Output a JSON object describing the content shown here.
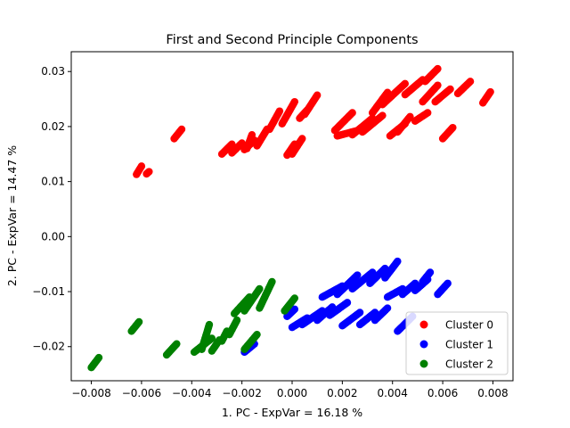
{
  "chart_data": {
    "type": "scatter",
    "title": "First and Second Principle Components",
    "xlabel": "1. PC - ExpVar = 16.18 %",
    "ylabel": "2. PC - ExpVar = 14.47 %",
    "xlim": [
      -0.0088,
      0.0088
    ],
    "ylim": [
      -0.0262,
      0.0336
    ],
    "x_ticks": [
      -0.008,
      -0.006,
      -0.004,
      -0.002,
      0.0,
      0.002,
      0.004,
      0.006,
      0.008
    ],
    "x_tick_labels": [
      "−0.008",
      "−0.006",
      "−0.004",
      "−0.002",
      "0.000",
      "0.002",
      "0.004",
      "0.006",
      "0.008"
    ],
    "y_ticks": [
      -0.02,
      -0.01,
      0.0,
      0.01,
      0.02,
      0.03
    ],
    "y_tick_labels": [
      "−0.02",
      "−0.01",
      "0.00",
      "0.01",
      "0.02",
      "0.03"
    ],
    "grid": false,
    "legend_position": "lower-right",
    "series": [
      {
        "name": "Cluster 0",
        "color": "#ff0000",
        "clusters": [
          {
            "x0": -0.0062,
            "y0": 0.0113,
            "x1": -0.006,
            "y1": 0.0128
          },
          {
            "x0": -0.0047,
            "y0": 0.0178,
            "x1": -0.0044,
            "y1": 0.0195
          },
          {
            "x0": -0.0058,
            "y0": 0.0114,
            "x1": -0.0057,
            "y1": 0.0118
          },
          {
            "x0": -0.0028,
            "y0": 0.015,
            "x1": -0.0024,
            "y1": 0.0168
          },
          {
            "x0": -0.0024,
            "y0": 0.0152,
            "x1": -0.002,
            "y1": 0.017
          },
          {
            "x0": -0.0019,
            "y0": 0.0158,
            "x1": -0.0015,
            "y1": 0.0175
          },
          {
            "x0": -0.0014,
            "y0": 0.0165,
            "x1": -0.001,
            "y1": 0.0195
          },
          {
            "x0": -0.0018,
            "y0": 0.016,
            "x1": -0.0016,
            "y1": 0.0185
          },
          {
            "x0": -0.0009,
            "y0": 0.0195,
            "x1": -0.0005,
            "y1": 0.0228
          },
          {
            "x0": -0.0004,
            "y0": 0.0205,
            "x1": 0.0001,
            "y1": 0.0245
          },
          {
            "x0": -0.0002,
            "y0": 0.0148,
            "x1": 0.0001,
            "y1": 0.0168
          },
          {
            "x0": 0.0,
            "y0": 0.015,
            "x1": 0.0004,
            "y1": 0.0178
          },
          {
            "x0": 0.0005,
            "y0": 0.0222,
            "x1": 0.001,
            "y1": 0.0257
          },
          {
            "x0": 0.0003,
            "y0": 0.0215,
            "x1": 0.0006,
            "y1": 0.023
          },
          {
            "x0": 0.0017,
            "y0": 0.0193,
            "x1": 0.0024,
            "y1": 0.0225
          },
          {
            "x0": 0.0018,
            "y0": 0.0183,
            "x1": 0.0028,
            "y1": 0.0195
          },
          {
            "x0": 0.0024,
            "y0": 0.0185,
            "x1": 0.0032,
            "y1": 0.0215
          },
          {
            "x0": 0.0028,
            "y0": 0.019,
            "x1": 0.0036,
            "y1": 0.022
          },
          {
            "x0": 0.0032,
            "y0": 0.0225,
            "x1": 0.0038,
            "y1": 0.0262
          },
          {
            "x0": 0.0036,
            "y0": 0.024,
            "x1": 0.0045,
            "y1": 0.0278
          },
          {
            "x0": 0.0039,
            "y0": 0.0183,
            "x1": 0.0045,
            "y1": 0.0205
          },
          {
            "x0": 0.0042,
            "y0": 0.019,
            "x1": 0.0047,
            "y1": 0.0218
          },
          {
            "x0": 0.0045,
            "y0": 0.0258,
            "x1": 0.0052,
            "y1": 0.0285
          },
          {
            "x0": 0.0049,
            "y0": 0.021,
            "x1": 0.0054,
            "y1": 0.0225
          },
          {
            "x0": 0.0052,
            "y0": 0.0245,
            "x1": 0.0058,
            "y1": 0.0275
          },
          {
            "x0": 0.0053,
            "y0": 0.0282,
            "x1": 0.0058,
            "y1": 0.0305
          },
          {
            "x0": 0.0057,
            "y0": 0.0245,
            "x1": 0.0063,
            "y1": 0.0268
          },
          {
            "x0": 0.006,
            "y0": 0.0178,
            "x1": 0.0064,
            "y1": 0.0198
          },
          {
            "x0": 0.0066,
            "y0": 0.026,
            "x1": 0.0071,
            "y1": 0.0282
          },
          {
            "x0": 0.0076,
            "y0": 0.0243,
            "x1": 0.0079,
            "y1": 0.0263
          }
        ]
      },
      {
        "name": "Cluster 1",
        "color": "#0000ff",
        "clusters": [
          {
            "x0": -0.0019,
            "y0": -0.021,
            "x1": -0.0015,
            "y1": -0.0195
          },
          {
            "x0": -0.0002,
            "y0": -0.0145,
            "x1": 0.0001,
            "y1": -0.0132
          },
          {
            "x0": 0.0,
            "y0": -0.0165,
            "x1": 0.0006,
            "y1": -0.0148
          },
          {
            "x0": 0.0004,
            "y0": -0.016,
            "x1": 0.0012,
            "y1": -0.0135
          },
          {
            "x0": 0.001,
            "y0": -0.0152,
            "x1": 0.0016,
            "y1": -0.0128
          },
          {
            "x0": 0.0015,
            "y0": -0.0143,
            "x1": 0.0022,
            "y1": -0.012
          },
          {
            "x0": 0.0012,
            "y0": -0.011,
            "x1": 0.002,
            "y1": -0.009
          },
          {
            "x0": 0.0018,
            "y0": -0.0105,
            "x1": 0.0026,
            "y1": -0.007
          },
          {
            "x0": 0.0024,
            "y0": -0.0095,
            "x1": 0.0032,
            "y1": -0.0065
          },
          {
            "x0": 0.0031,
            "y0": -0.0085,
            "x1": 0.0037,
            "y1": -0.0058
          },
          {
            "x0": 0.0037,
            "y0": -0.0075,
            "x1": 0.0042,
            "y1": -0.0045
          },
          {
            "x0": 0.002,
            "y0": -0.0162,
            "x1": 0.0027,
            "y1": -0.0138
          },
          {
            "x0": 0.0027,
            "y0": -0.016,
            "x1": 0.0033,
            "y1": -0.0138
          },
          {
            "x0": 0.0033,
            "y0": -0.0152,
            "x1": 0.0038,
            "y1": -0.013
          },
          {
            "x0": 0.0038,
            "y0": -0.011,
            "x1": 0.0044,
            "y1": -0.0095
          },
          {
            "x0": 0.0044,
            "y0": -0.0105,
            "x1": 0.0049,
            "y1": -0.0085
          },
          {
            "x0": 0.0049,
            "y0": -0.0098,
            "x1": 0.0054,
            "y1": -0.0078
          },
          {
            "x0": 0.0052,
            "y0": -0.0082,
            "x1": 0.0055,
            "y1": -0.0065
          },
          {
            "x0": 0.0042,
            "y0": -0.0172,
            "x1": 0.0048,
            "y1": -0.0145
          },
          {
            "x0": 0.0058,
            "y0": -0.0105,
            "x1": 0.0062,
            "y1": -0.0085
          }
        ]
      },
      {
        "name": "Cluster 2",
        "color": "#008000",
        "clusters": [
          {
            "x0": -0.008,
            "y0": -0.0238,
            "x1": -0.0077,
            "y1": -0.022
          },
          {
            "x0": -0.0064,
            "y0": -0.0172,
            "x1": -0.0061,
            "y1": -0.0155
          },
          {
            "x0": -0.005,
            "y0": -0.0215,
            "x1": -0.0046,
            "y1": -0.0195
          },
          {
            "x0": -0.0039,
            "y0": -0.021,
            "x1": -0.0032,
            "y1": -0.0185
          },
          {
            "x0": -0.0036,
            "y0": -0.0205,
            "x1": -0.0033,
            "y1": -0.016
          },
          {
            "x0": -0.0032,
            "y0": -0.0208,
            "x1": -0.0029,
            "y1": -0.0188
          },
          {
            "x0": -0.0028,
            "y0": -0.019,
            "x1": -0.0026,
            "y1": -0.0172
          },
          {
            "x0": -0.0025,
            "y0": -0.0178,
            "x1": -0.0022,
            "y1": -0.0152
          },
          {
            "x0": -0.0023,
            "y0": -0.014,
            "x1": -0.0017,
            "y1": -0.011
          },
          {
            "x0": -0.0019,
            "y0": -0.0135,
            "x1": -0.0013,
            "y1": -0.0095
          },
          {
            "x0": -0.0019,
            "y0": -0.0205,
            "x1": -0.0014,
            "y1": -0.0178
          },
          {
            "x0": -0.0013,
            "y0": -0.013,
            "x1": -0.0008,
            "y1": -0.0082
          },
          {
            "x0": -0.0003,
            "y0": -0.0135,
            "x1": 0.0001,
            "y1": -0.0112
          }
        ]
      }
    ]
  }
}
